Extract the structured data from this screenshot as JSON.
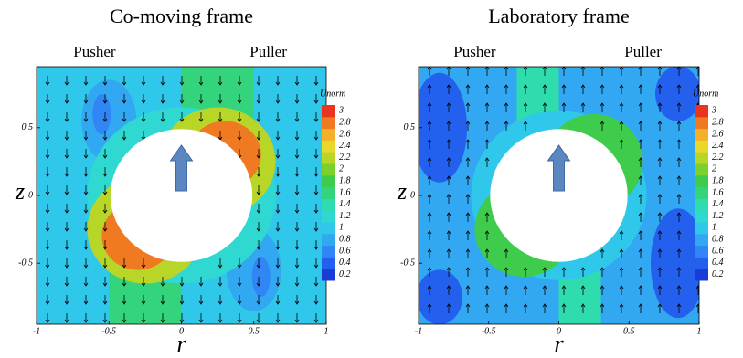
{
  "chart_data": [
    {
      "type": "contour",
      "title": "Co-moving frame",
      "annotations": [
        "Pusher",
        "Puller"
      ],
      "xlabel": "r",
      "ylabel": "z",
      "xlim": [
        -1,
        1
      ],
      "ylim": [
        -0.95,
        0.95
      ],
      "xticks": [
        -1,
        -0.5,
        0,
        0.5,
        1
      ],
      "yticks": [
        0.5,
        0,
        -0.5
      ],
      "colorbar": {
        "label": "Unorm",
        "lim": [
          0.1,
          3.1
        ],
        "ticks": [
          0.2,
          0.4,
          0.6,
          0.8,
          1,
          1.2,
          1.4,
          1.6,
          1.8,
          2,
          2.2,
          2.4,
          2.6,
          2.8,
          3
        ],
        "colors": [
          "#1a3cd6",
          "#2460ee",
          "#2f86f4",
          "#33a8f2",
          "#30c8ea",
          "#2fd8d0",
          "#2fdcae",
          "#34d47c",
          "#3fcc4c",
          "#7cd02c",
          "#b8d628",
          "#e8d82a",
          "#f4b028",
          "#f07a22",
          "#e83420"
        ]
      }
    },
    {
      "type": "contour",
      "title": "Laboratory frame",
      "annotations": [
        "Pusher",
        "Puller"
      ],
      "xlabel": "r",
      "ylabel": "z",
      "xlim": [
        -1,
        1
      ],
      "ylim": [
        -0.95,
        0.95
      ],
      "xticks": [
        -1,
        -0.5,
        0,
        0.5,
        1
      ],
      "yticks": [
        0.5,
        0,
        -0.5
      ],
      "colorbar": {
        "label": "Unorm",
        "lim": [
          0.1,
          3.1
        ],
        "ticks": [
          0.2,
          0.4,
          0.6,
          0.8,
          1,
          1.2,
          1.4,
          1.6,
          1.8,
          2,
          2.2,
          2.4,
          2.6,
          2.8,
          3
        ],
        "colors": [
          "#1a3cd6",
          "#2460ee",
          "#2f86f4",
          "#33a8f2",
          "#30c8ea",
          "#2fd8d0",
          "#2fdcae",
          "#34d47c",
          "#3fcc4c",
          "#7cd02c",
          "#b8d628",
          "#e8d82a",
          "#f4b028",
          "#f07a22",
          "#e83420"
        ]
      }
    }
  ]
}
